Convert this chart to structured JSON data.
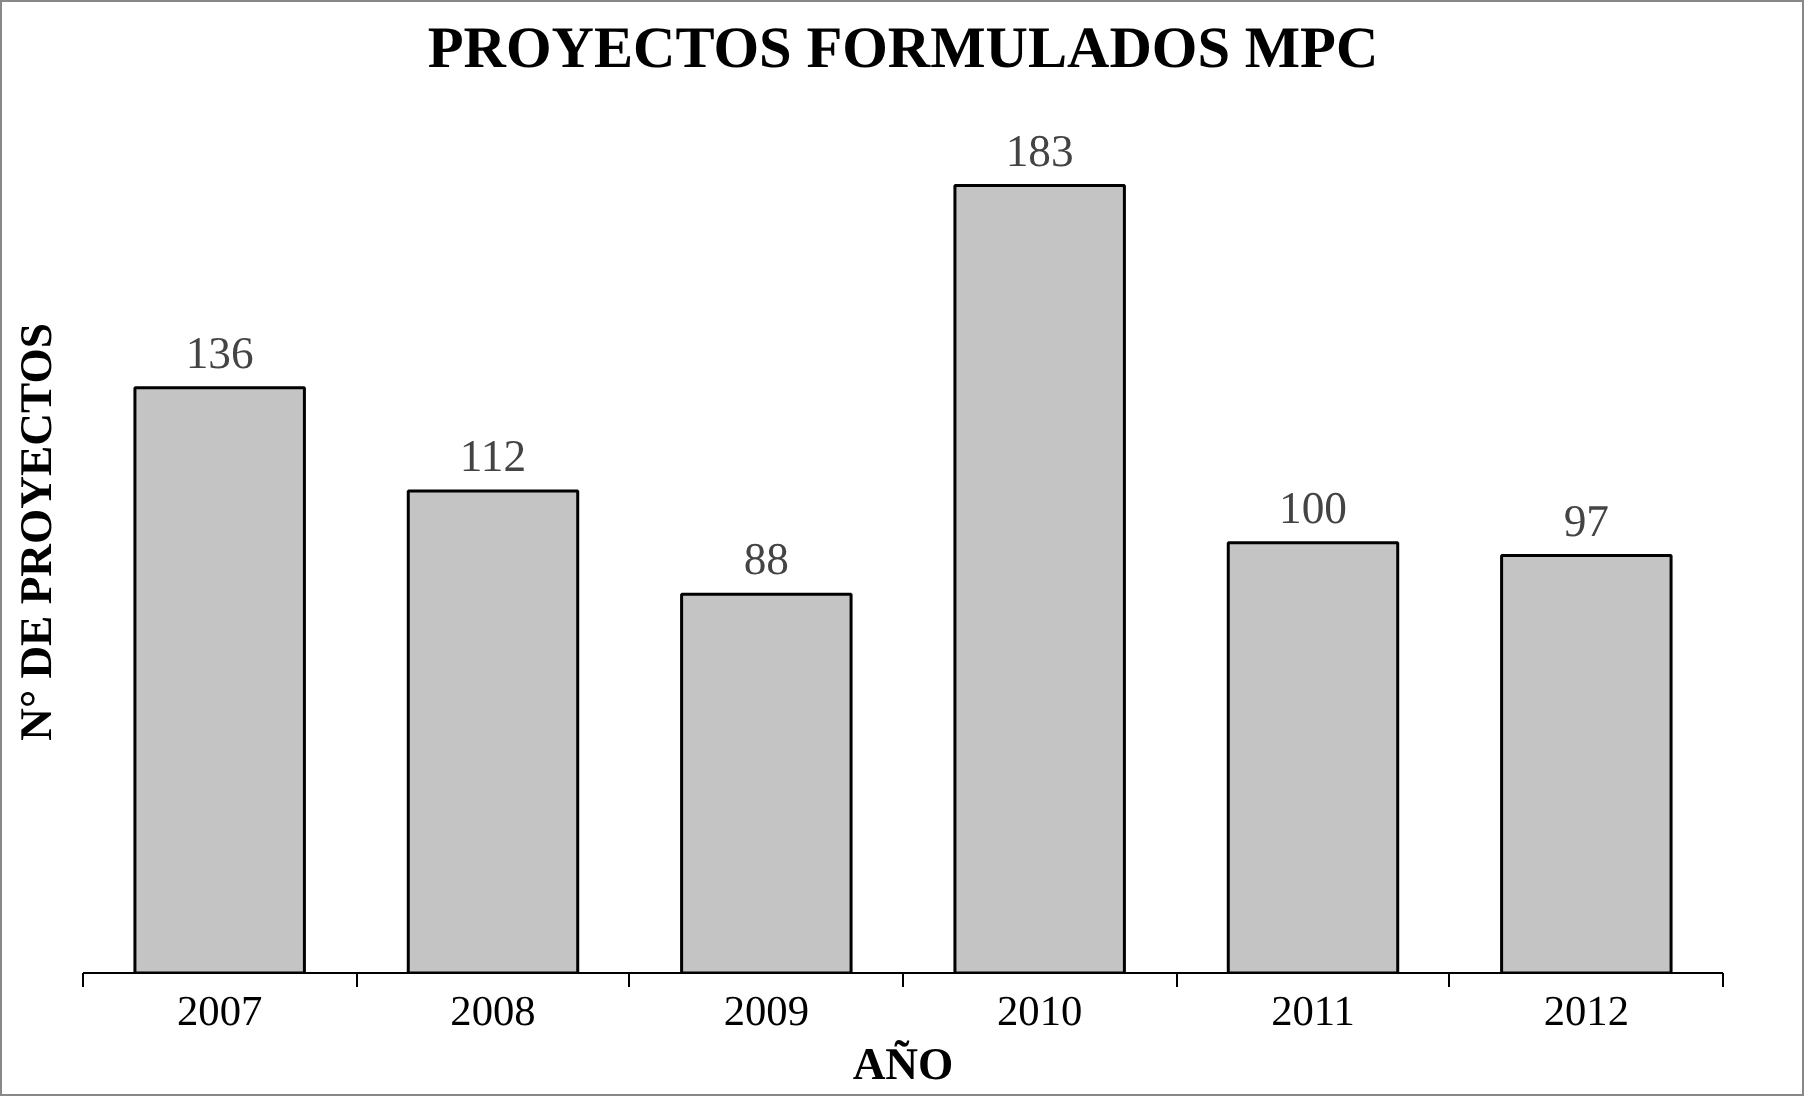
{
  "chart_data": {
    "type": "bar",
    "title": "PROYECTOS FORMULADOS MPC",
    "xlabel": "AÑO",
    "ylabel": "N° DE PROYECTOS",
    "categories": [
      "2007",
      "2008",
      "2009",
      "2010",
      "2011",
      "2012"
    ],
    "values": [
      136,
      112,
      88,
      183,
      100,
      97
    ],
    "color": "#c4c4c4",
    "data_labels": true,
    "grid": false
  }
}
